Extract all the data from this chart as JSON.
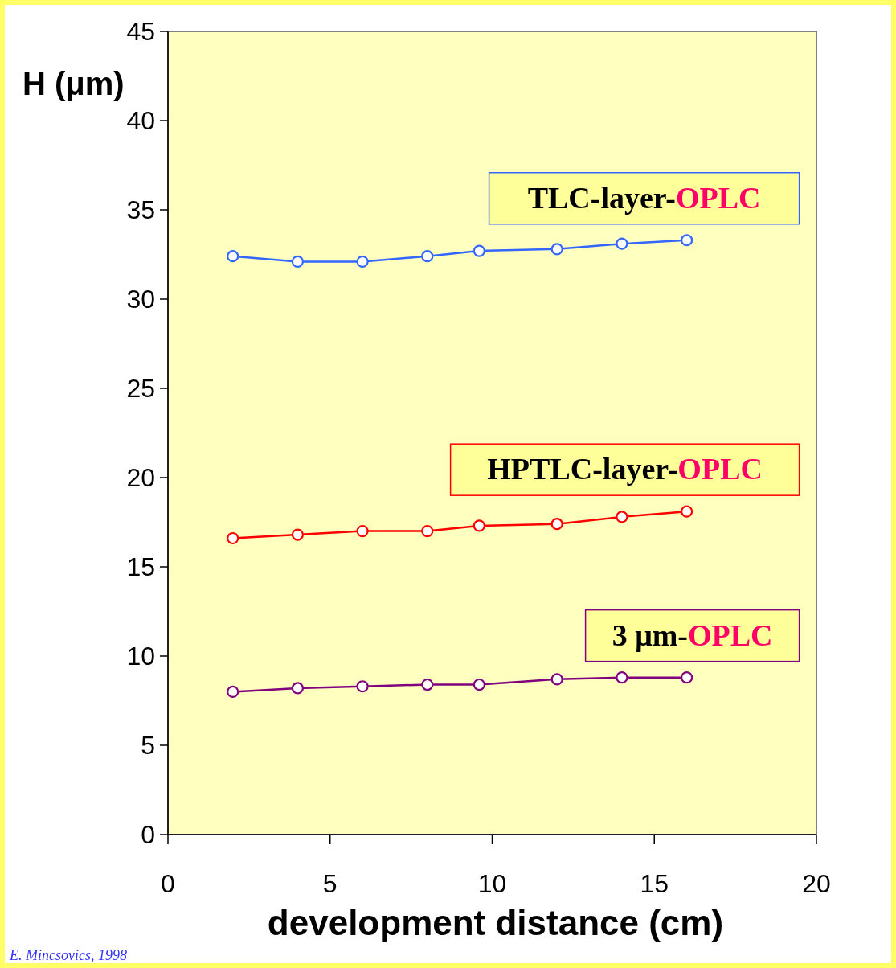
{
  "chart_data": {
    "type": "line",
    "xlabel": "development distance (cm)",
    "ylabel": "H (μm)",
    "x": [
      2,
      4,
      6,
      8,
      9.6,
      12,
      14,
      16
    ],
    "series": [
      {
        "name": "TLC-layer-OPLC",
        "color": "#3366ff",
        "values": [
          32.4,
          32.1,
          32.1,
          32.4,
          32.7,
          32.8,
          33.1,
          33.3
        ]
      },
      {
        "name": "HPTLC-layer-OPLC",
        "color": "#ff0000",
        "values": [
          16.6,
          16.8,
          17.0,
          17.0,
          17.3,
          17.4,
          17.8,
          18.1
        ]
      },
      {
        "name": "3 μm-OPLC",
        "color": "#800080",
        "values": [
          8.0,
          8.2,
          8.3,
          8.4,
          8.4,
          8.7,
          8.8,
          8.8
        ]
      }
    ],
    "xlim": [
      0,
      20
    ],
    "xticks": [
      0,
      5,
      10,
      15,
      20
    ],
    "ylim": [
      0,
      45
    ],
    "yticks": [
      0,
      5,
      10,
      15,
      20,
      25,
      30,
      35,
      40,
      45
    ],
    "grid": false,
    "marker": "circle",
    "line_style": "solid",
    "annotations": [
      "E. Mincsovics, 1998"
    ]
  }
}
